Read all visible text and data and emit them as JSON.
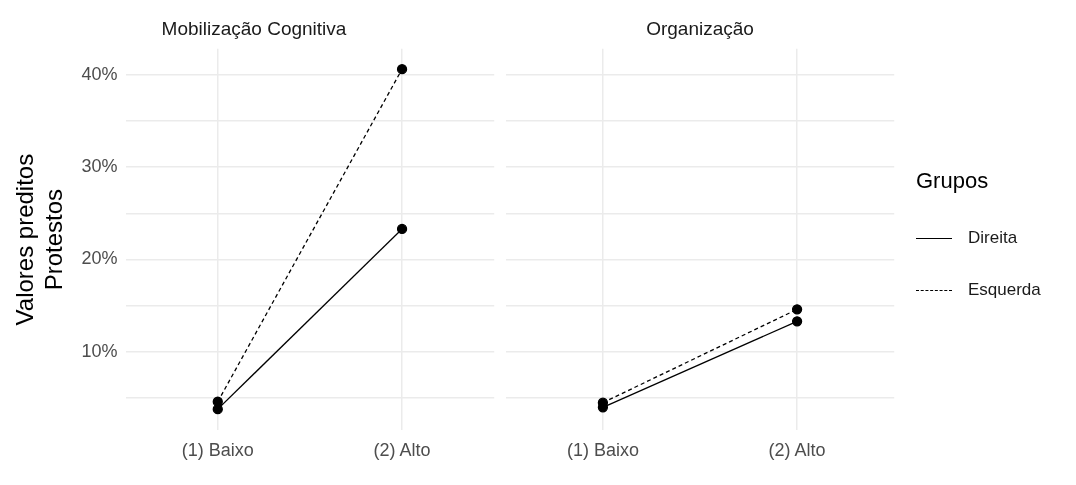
{
  "chart_data": [
    {
      "type": "line",
      "title": "Mobilização Cognitiva",
      "ylabel": "Valores preditos\nProtestos",
      "categories": [
        "(1) Baixo",
        "(2) Alto"
      ],
      "series": [
        {
          "color": "#000000",
          "line_style": "solid",
          "values": [
            3.8,
            23.3
          ]
        },
        {
          "color": "#000000",
          "line_style": "dashed",
          "values": [
            4.6,
            40.6
          ]
        }
      ],
      "ylim": [
        1.5,
        42.8
      ],
      "yticks": [
        {
          "value": 5,
          "label": null
        },
        {
          "value": 10,
          "label": "10%"
        },
        {
          "value": 15,
          "label": null
        },
        {
          "value": 20,
          "label": "20%"
        },
        {
          "value": 25,
          "label": null
        },
        {
          "value": 30,
          "label": "30%"
        },
        {
          "value": 35,
          "label": null
        },
        {
          "value": 40,
          "label": "40%"
        }
      ],
      "grid": true,
      "marker": "circle",
      "legend": false
    },
    {
      "type": "line",
      "title": "Organização",
      "categories": [
        "(1) Baixo",
        "(2) Alto"
      ],
      "legend_title": "Grupos",
      "series": [
        {
          "name": "Direita",
          "color": "#000000",
          "line_style": "solid",
          "values": [
            4.0,
            13.3
          ]
        },
        {
          "name": "Esquerda",
          "color": "#000000",
          "line_style": "dashed",
          "values": [
            4.5,
            14.6
          ]
        }
      ],
      "ylim": [
        1.5,
        42.8
      ],
      "yticks": [
        5,
        10,
        15,
        20,
        25,
        30,
        35,
        40
      ],
      "grid": true,
      "marker": "circle",
      "legend": "right",
      "tick_labels": "x"
    }
  ]
}
